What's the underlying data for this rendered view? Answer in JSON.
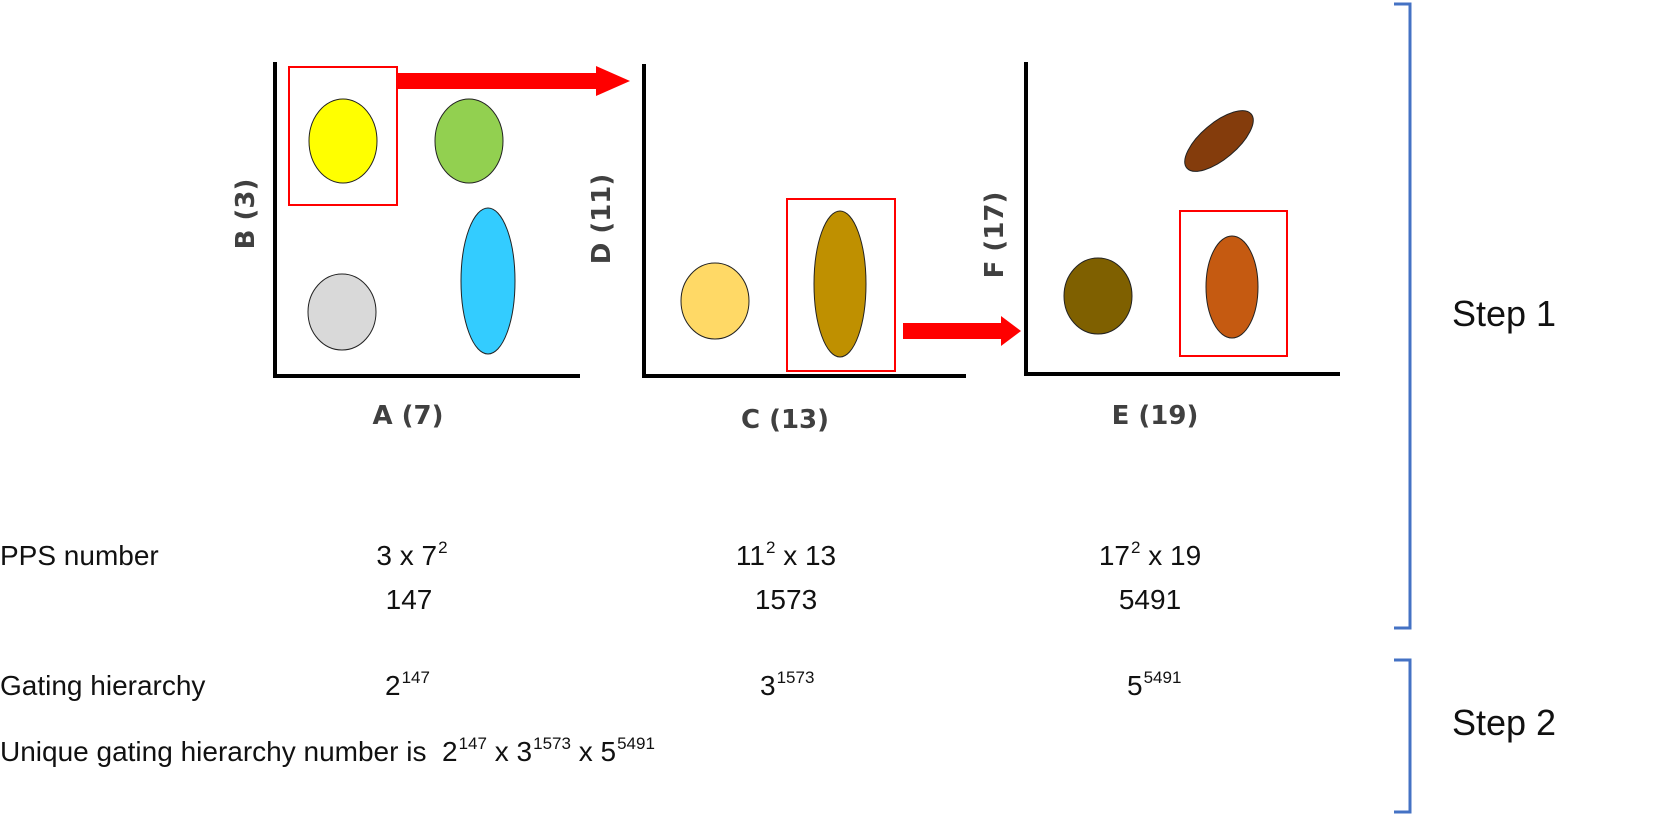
{
  "panels": [
    {
      "x_label": "A (7)",
      "y_label": "B (3)",
      "populations": [
        "yellow",
        "green",
        "gray",
        "cyan"
      ],
      "fill_colors": [
        "#ffff00",
        "#92d050",
        "#d9d9d9",
        "#33ccff"
      ]
    },
    {
      "x_label": "C (13)",
      "y_label": "D (11)",
      "populations": [
        "light-orange",
        "dark-gold"
      ],
      "fill_colors": [
        "#ffd966",
        "#bf9000"
      ]
    },
    {
      "x_label": "E (19)",
      "y_label": "F (17)",
      "populations": [
        "dark-brown",
        "rust",
        "brown"
      ],
      "fill_colors": [
        "#7f6000",
        "#c55a11",
        "#843c0c"
      ]
    }
  ],
  "colors": {
    "gate": "#ff0000",
    "arrow": "#ff0000",
    "axis": "#000000",
    "bracket": "#4472c4"
  },
  "pps_row": {
    "label": "PPS number",
    "formulas": [
      {
        "base_a": "3 x 7",
        "exp_a": "2",
        "rest": ""
      },
      {
        "base_a": "11",
        "exp_a": "2",
        "rest": " x 13"
      },
      {
        "base_a": "17",
        "exp_a": "2",
        "rest": " x 19"
      }
    ],
    "values": [
      "147",
      "1573",
      "5491"
    ]
  },
  "gating_row": {
    "label": "Gating hierarchy",
    "items": [
      {
        "base": "2",
        "exp": "147"
      },
      {
        "base": "3",
        "exp": "1573"
      },
      {
        "base": "5",
        "exp": "5491"
      }
    ]
  },
  "unique_row": {
    "prefix": "Unique gating hierarchy number is",
    "terms": [
      {
        "base": "2",
        "exp": "147"
      },
      {
        "base": "3",
        "exp": "1573"
      },
      {
        "base": "5",
        "exp": "5491"
      }
    ],
    "separator": "x"
  },
  "steps": {
    "step1": "Step 1",
    "step2": "Step 2"
  }
}
